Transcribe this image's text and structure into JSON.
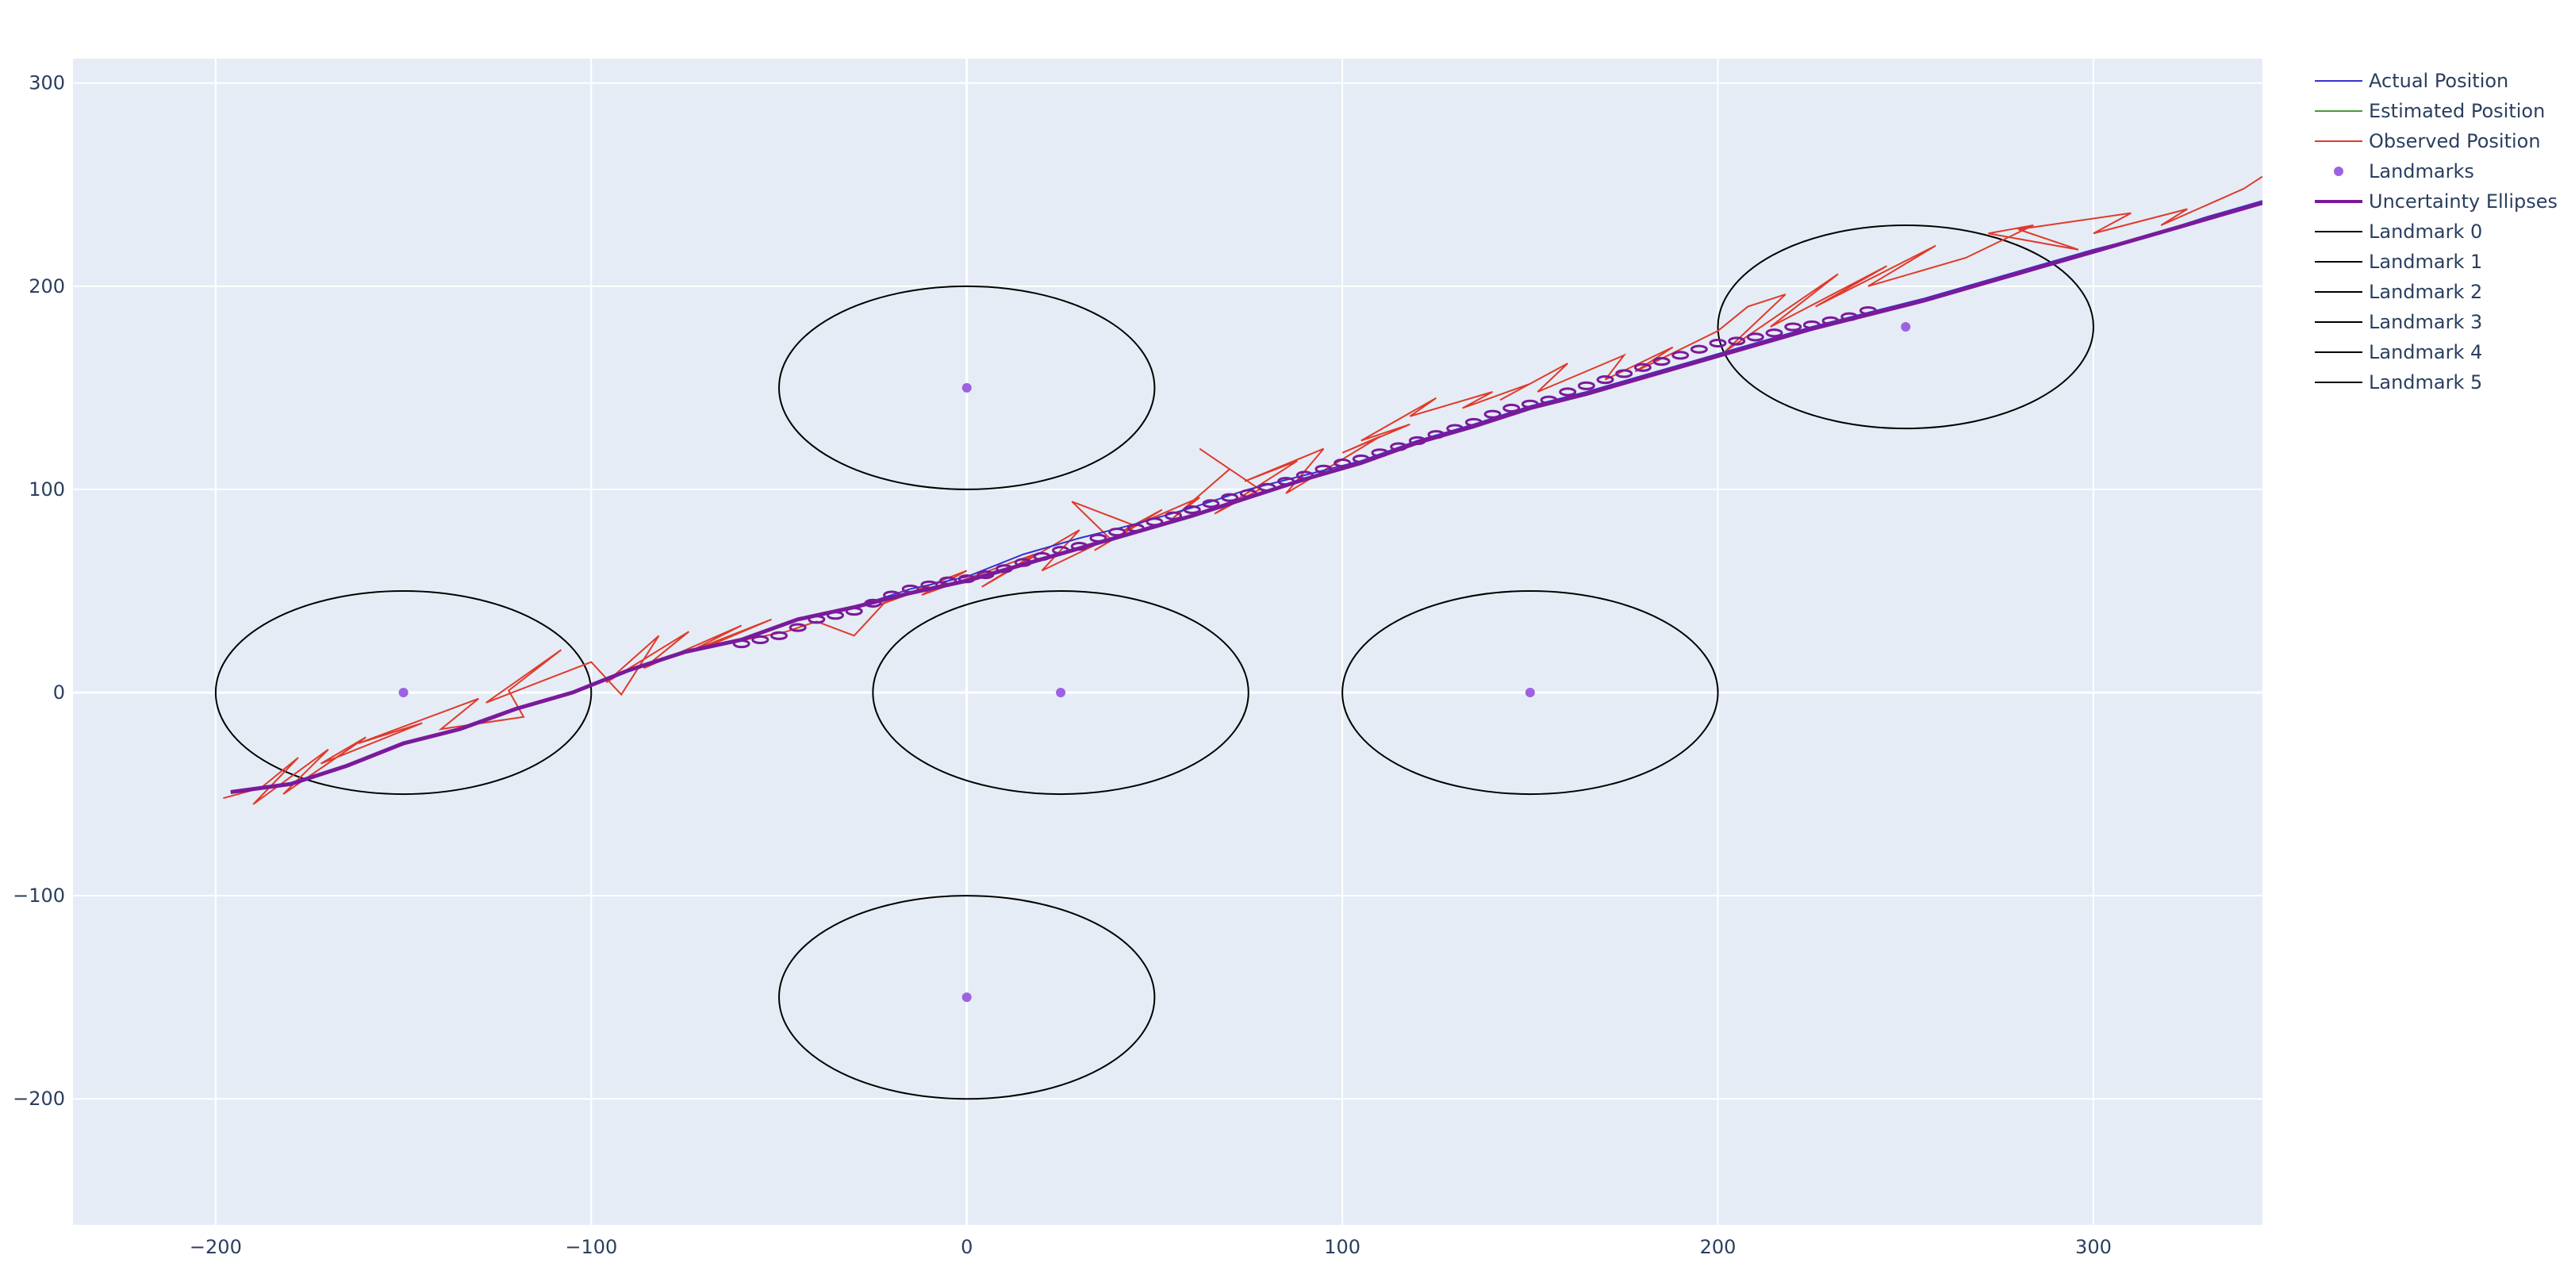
{
  "chart_data": {
    "type": "scatter",
    "xlim": [
      -238,
      345
    ],
    "ylim": [
      -262,
      312
    ],
    "xticks": [
      -200,
      -100,
      0,
      100,
      200,
      300
    ],
    "yticks": [
      -200,
      -100,
      0,
      100,
      200,
      300
    ],
    "xtick_labels": [
      "−200",
      "−100",
      "0",
      "100",
      "200",
      "300"
    ],
    "ytick_labels": [
      "−200",
      "−100",
      "0",
      "100",
      "200",
      "300"
    ],
    "grid": true,
    "plot_bgcolor": "#E5ECF6",
    "legend_position": "right",
    "legend": [
      {
        "name": "Actual Position",
        "color": "#3333cc",
        "kind": "line"
      },
      {
        "name": "Estimated Position",
        "color": "#4a9a3a",
        "kind": "line"
      },
      {
        "name": "Observed Position",
        "color": "#e03a2a",
        "kind": "line"
      },
      {
        "name": "Landmarks",
        "color": "#9e62e0",
        "kind": "marker"
      },
      {
        "name": "Uncertainty Ellipses",
        "color": "#7a1a9a",
        "kind": "thickline"
      },
      {
        "name": "Landmark 0",
        "color": "#000000",
        "kind": "line"
      },
      {
        "name": "Landmark 1",
        "color": "#000000",
        "kind": "line"
      },
      {
        "name": "Landmark 2",
        "color": "#000000",
        "kind": "line"
      },
      {
        "name": "Landmark 3",
        "color": "#000000",
        "kind": "line"
      },
      {
        "name": "Landmark 4",
        "color": "#000000",
        "kind": "line"
      },
      {
        "name": "Landmark 5",
        "color": "#000000",
        "kind": "line"
      }
    ],
    "landmarks": [
      {
        "x": -150,
        "y": 0
      },
      {
        "x": 0,
        "y": 150
      },
      {
        "x": 0,
        "y": -150
      },
      {
        "x": 25,
        "y": 0
      },
      {
        "x": 150,
        "y": 0
      },
      {
        "x": 250,
        "y": 180
      }
    ],
    "landmark_ranges": [
      {
        "x": -150,
        "y": 0,
        "rx": 50,
        "ry": 50
      },
      {
        "x": 0,
        "y": 150,
        "rx": 50,
        "ry": 50
      },
      {
        "x": 0,
        "y": -150,
        "rx": 50,
        "ry": 50
      },
      {
        "x": 25,
        "y": 0,
        "rx": 50,
        "ry": 50
      },
      {
        "x": 150,
        "y": 0,
        "rx": 50,
        "ry": 50
      },
      {
        "x": 250,
        "y": 180,
        "rx": 50,
        "ry": 50
      }
    ],
    "series": [
      {
        "name": "Actual Position",
        "x": [
          -196,
          -180,
          -165,
          -150,
          -135,
          -120,
          -105,
          -90,
          -75,
          -60,
          -45,
          -30,
          -15,
          0,
          15,
          30,
          45,
          60,
          75,
          90,
          105,
          120,
          135,
          150,
          165,
          180,
          195,
          210,
          225,
          240,
          255,
          270,
          285,
          300,
          315,
          330,
          345
        ],
        "y": [
          -49,
          -45,
          -36,
          -25,
          -18,
          -8,
          0,
          11,
          20,
          26,
          36,
          42,
          51,
          57,
          68,
          76,
          83,
          91,
          100,
          107,
          114,
          124,
          132,
          141,
          148,
          156,
          164,
          172,
          180,
          187,
          194,
          202,
          210,
          218,
          225,
          234,
          242
        ]
      },
      {
        "name": "Estimated Position",
        "x": [
          -196,
          -180,
          -165,
          -150,
          -135,
          -120,
          -105,
          -90,
          -75,
          -60,
          -45,
          -30,
          -15,
          0,
          15,
          30,
          45,
          60,
          75,
          90,
          105,
          120,
          135,
          150,
          165,
          180,
          195,
          210,
          225,
          240,
          255,
          270,
          285,
          300,
          315,
          330,
          345
        ],
        "y": [
          -49,
          -45,
          -36,
          -25,
          -18,
          -8,
          0,
          11,
          20,
          26,
          36,
          42,
          49,
          55,
          63,
          71,
          79,
          87,
          96,
          105,
          113,
          123,
          131,
          140,
          147,
          155,
          163,
          171,
          179,
          186,
          193,
          201,
          209,
          217,
          225,
          233,
          241
        ]
      },
      {
        "name": "Observed Position",
        "x": [
          -198,
          -188,
          -178,
          -190,
          -170,
          -182,
          -160,
          -172,
          -145,
          -162,
          -130,
          -140,
          -118,
          -122,
          -108,
          -128,
          -100,
          -92,
          -82,
          -96,
          -74,
          -86,
          -60,
          -74,
          -52,
          -70,
          -48,
          -40,
          -30,
          -22,
          -10,
          -25,
          0,
          -12,
          18,
          4,
          30,
          20,
          38,
          28,
          45,
          34,
          52,
          42,
          62,
          55,
          70,
          62,
          78,
          66,
          88,
          74,
          95,
          85,
          110,
          100,
          118,
          105,
          125,
          118,
          140,
          132,
          150,
          142,
          160,
          152,
          175,
          170,
          188,
          178,
          200,
          208,
          218,
          202,
          232,
          214,
          245,
          226,
          258,
          240,
          266,
          284,
          272,
          296,
          280,
          310,
          300,
          325,
          318,
          340,
          345
        ],
        "y": [
          -52,
          -47,
          -32,
          -55,
          -28,
          -50,
          -22,
          -35,
          -15,
          -25,
          -3,
          -18,
          -12,
          1,
          21,
          -5,
          15,
          -1,
          28,
          5,
          30,
          12,
          33,
          20,
          36,
          22,
          30,
          35,
          28,
          44,
          52,
          42,
          60,
          48,
          68,
          52,
          80,
          60,
          76,
          94,
          82,
          70,
          90,
          80,
          96,
          86,
          110,
          120,
          100,
          88,
          114,
          104,
          120,
          98,
          126,
          118,
          132,
          124,
          145,
          136,
          148,
          140,
          152,
          144,
          162,
          148,
          166,
          154,
          170,
          158,
          178,
          190,
          196,
          168,
          206,
          180,
          210,
          190,
          220,
          200,
          214,
          230,
          226,
          218,
          228,
          236,
          226,
          238,
          230,
          248,
          254
        ]
      }
    ],
    "ellipses": {
      "name": "Uncertainty Ellipses",
      "x": [
        -60,
        -55,
        -50,
        -45,
        -40,
        -35,
        -30,
        -25,
        -20,
        -15,
        -10,
        -5,
        0,
        5,
        10,
        15,
        20,
        25,
        30,
        35,
        40,
        45,
        50,
        55,
        60,
        65,
        70,
        75,
        80,
        85,
        90,
        95,
        100,
        105,
        110,
        115,
        120,
        125,
        130,
        135,
        140,
        145,
        150,
        155,
        160,
        165,
        170,
        175,
        180,
        185,
        190,
        195,
        200,
        205,
        210,
        215,
        220,
        225,
        230,
        235,
        240
      ],
      "y": [
        24,
        26,
        28,
        32,
        36,
        38,
        40,
        44,
        48,
        51,
        53,
        55,
        56,
        58,
        61,
        64,
        67,
        70,
        72,
        76,
        79,
        81,
        84,
        87,
        90,
        93,
        96,
        98,
        101,
        104,
        107,
        110,
        113,
        115,
        118,
        121,
        124,
        127,
        130,
        133,
        137,
        140,
        142,
        144,
        148,
        151,
        154,
        157,
        160,
        163,
        166,
        169,
        172,
        173,
        175,
        177,
        180,
        181,
        183,
        185,
        188
      ],
      "rx": 2,
      "ry": 1.6
    }
  }
}
